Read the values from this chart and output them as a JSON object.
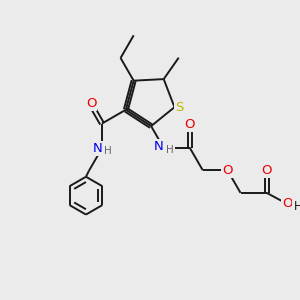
{
  "background_color": "#ebebeb",
  "bond_color": "#1a1a1a",
  "atom_colors": {
    "N": "#0000ee",
    "O": "#ee0000",
    "S": "#bbbb00",
    "H": "#666666",
    "C": "#1a1a1a"
  },
  "figsize": [
    3.0,
    3.0
  ],
  "dpi": 100,
  "lw": 1.4,
  "fs": 8.5
}
